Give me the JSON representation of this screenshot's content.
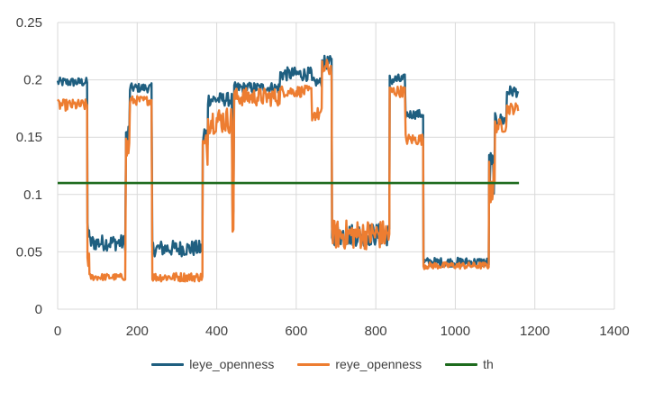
{
  "chart_data": {
    "type": "line",
    "title": "",
    "xlabel": "",
    "ylabel": "",
    "xlim": [
      0,
      1400
    ],
    "ylim": [
      0,
      0.25
    ],
    "x_ticks": [
      "0",
      "200",
      "400",
      "600",
      "800",
      "1000",
      "1200",
      "1400"
    ],
    "y_ticks": [
      "0",
      "0.05",
      "0.1",
      "0.15",
      "0.2",
      "0.25"
    ],
    "grid": "both",
    "legend_position": "bottom",
    "series": [
      {
        "name": "leye_openness",
        "color": "#1f5f80",
        "segments": [
          {
            "x0": 0,
            "x1": 75,
            "level": 0.198,
            "noise": 0.004
          },
          {
            "x0": 75,
            "x1": 80,
            "level": 0.07,
            "noise": 0.01
          },
          {
            "x0": 80,
            "x1": 172,
            "level": 0.058,
            "noise": 0.007
          },
          {
            "x0": 172,
            "x1": 182,
            "level": 0.15,
            "noise": 0.015
          },
          {
            "x0": 182,
            "x1": 238,
            "level": 0.193,
            "noise": 0.004
          },
          {
            "x0": 238,
            "x1": 365,
            "level": 0.053,
            "noise": 0.007
          },
          {
            "x0": 365,
            "x1": 378,
            "level": 0.15,
            "noise": 0.015
          },
          {
            "x0": 378,
            "x1": 440,
            "level": 0.183,
            "noise": 0.006
          },
          {
            "x0": 440,
            "x1": 444,
            "level": 0.08,
            "noise": 0.006
          },
          {
            "x0": 444,
            "x1": 560,
            "level": 0.193,
            "noise": 0.005
          },
          {
            "x0": 560,
            "x1": 640,
            "level": 0.205,
            "noise": 0.006
          },
          {
            "x0": 640,
            "x1": 665,
            "level": 0.198,
            "noise": 0.004
          },
          {
            "x0": 665,
            "x1": 690,
            "level": 0.215,
            "noise": 0.006
          },
          {
            "x0": 690,
            "x1": 835,
            "level": 0.065,
            "noise": 0.01
          },
          {
            "x0": 835,
            "x1": 875,
            "level": 0.2,
            "noise": 0.005
          },
          {
            "x0": 875,
            "x1": 920,
            "level": 0.17,
            "noise": 0.004
          },
          {
            "x0": 920,
            "x1": 1085,
            "level": 0.041,
            "noise": 0.004
          },
          {
            "x0": 1085,
            "x1": 1100,
            "level": 0.12,
            "noise": 0.02
          },
          {
            "x0": 1100,
            "x1": 1130,
            "level": 0.165,
            "noise": 0.006
          },
          {
            "x0": 1130,
            "x1": 1160,
            "level": 0.19,
            "noise": 0.005
          }
        ]
      },
      {
        "name": "reye_openness",
        "color": "#ed7d31",
        "segments": [
          {
            "x0": 0,
            "x1": 75,
            "level": 0.178,
            "noise": 0.005
          },
          {
            "x0": 75,
            "x1": 80,
            "level": 0.045,
            "noise": 0.01
          },
          {
            "x0": 80,
            "x1": 172,
            "level": 0.028,
            "noise": 0.003
          },
          {
            "x0": 172,
            "x1": 182,
            "level": 0.14,
            "noise": 0.015
          },
          {
            "x0": 182,
            "x1": 238,
            "level": 0.182,
            "noise": 0.004
          },
          {
            "x0": 238,
            "x1": 365,
            "level": 0.028,
            "noise": 0.004
          },
          {
            "x0": 365,
            "x1": 378,
            "level": 0.14,
            "noise": 0.015
          },
          {
            "x0": 378,
            "x1": 440,
            "level": 0.165,
            "noise": 0.012
          },
          {
            "x0": 440,
            "x1": 444,
            "level": 0.07,
            "noise": 0.004
          },
          {
            "x0": 444,
            "x1": 560,
            "level": 0.185,
            "noise": 0.008
          },
          {
            "x0": 560,
            "x1": 640,
            "level": 0.19,
            "noise": 0.005
          },
          {
            "x0": 640,
            "x1": 665,
            "level": 0.17,
            "noise": 0.006
          },
          {
            "x0": 665,
            "x1": 690,
            "level": 0.21,
            "noise": 0.008
          },
          {
            "x0": 690,
            "x1": 835,
            "level": 0.065,
            "noise": 0.013
          },
          {
            "x0": 835,
            "x1": 875,
            "level": 0.19,
            "noise": 0.005
          },
          {
            "x0": 875,
            "x1": 920,
            "level": 0.148,
            "noise": 0.005
          },
          {
            "x0": 920,
            "x1": 1085,
            "level": 0.038,
            "noise": 0.003
          },
          {
            "x0": 1085,
            "x1": 1100,
            "level": 0.11,
            "noise": 0.02
          },
          {
            "x0": 1100,
            "x1": 1130,
            "level": 0.16,
            "noise": 0.006
          },
          {
            "x0": 1130,
            "x1": 1160,
            "level": 0.175,
            "noise": 0.005
          }
        ]
      },
      {
        "name": "th",
        "color": "#1e6b1e",
        "x": [
          0,
          1160
        ],
        "values": [
          0.11,
          0.11
        ]
      }
    ]
  }
}
